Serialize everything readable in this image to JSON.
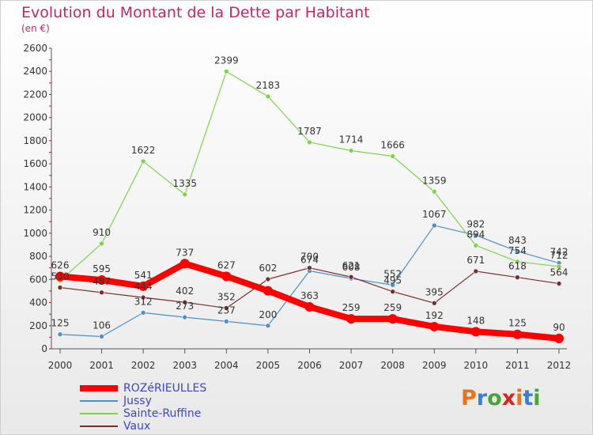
{
  "header": {
    "title": "Evolution du Montant de la Dette par Habitant",
    "unit": "(en €)"
  },
  "logo": {
    "text": "Proxiti",
    "colors": [
      "#e8731e",
      "#3a7fd1",
      "#4aa337",
      "#d6261d",
      "#e8731e",
      "#3a7fd1",
      "#4aa337"
    ]
  },
  "chart_data": {
    "type": "line",
    "title": "Evolution du Montant de la Dette par Habitant",
    "subtitle": "(en €)",
    "xlabel": "",
    "ylabel": "",
    "ylim": [
      0,
      2600
    ],
    "yticks": [
      0,
      200,
      400,
      600,
      800,
      1000,
      1200,
      1400,
      1600,
      1800,
      2000,
      2200,
      2400,
      2600
    ],
    "categories": [
      "2000",
      "2001",
      "2002",
      "2003",
      "2004",
      "2005",
      "2006",
      "2007",
      "2008",
      "2009",
      "2010",
      "2011",
      "2012"
    ],
    "grid": false,
    "legend": "bottom-left",
    "series": [
      {
        "name": "ROZéRIEULLES",
        "color": "#ff0000",
        "values": [
          626,
          595,
          541,
          737,
          627,
          502,
          363,
          259,
          259,
          192,
          148,
          125,
          90
        ],
        "labels": [
          "626",
          "595",
          "541",
          "737",
          "627",
          "",
          "363",
          "259",
          "259",
          "192",
          "148",
          "125",
          "90"
        ]
      },
      {
        "name": "Jussy",
        "color": "#4b8fd0",
        "values": [
          125,
          106,
          312,
          273,
          237,
          200,
          674,
          608,
          552,
          1067,
          982,
          843,
          742
        ],
        "labels": [
          "125",
          "106",
          "312",
          "273",
          "237",
          "200",
          "674",
          "608",
          "552",
          "1067",
          "982",
          "843",
          "742"
        ]
      },
      {
        "name": "Sainte-Ruffine",
        "color": "#7fd34a",
        "values": [
          590,
          910,
          1622,
          1335,
          2399,
          2183,
          1787,
          1714,
          1666,
          1359,
          894,
          754,
          712
        ],
        "labels": [
          "",
          "910",
          "1622",
          "1335",
          "2399",
          "2183",
          "1787",
          "1714",
          "1666",
          "1359",
          "894",
          "754",
          "712"
        ]
      },
      {
        "name": "Vaux",
        "color": "#7b2c2c",
        "values": [
          530,
          487,
          444,
          402,
          352,
          602,
          700,
          621,
          495,
          395,
          671,
          618,
          564
        ],
        "labels": [
          "530",
          "487",
          "444",
          "402",
          "352",
          "602",
          "700",
          "621",
          "495",
          "395",
          "671",
          "618",
          "564"
        ]
      }
    ]
  }
}
